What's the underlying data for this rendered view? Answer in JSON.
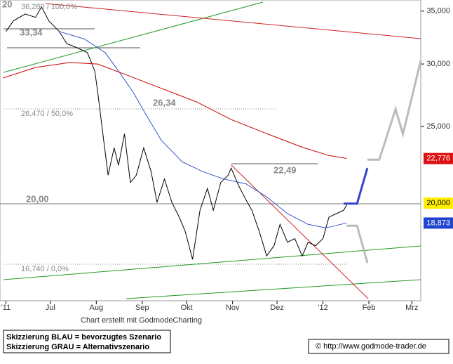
{
  "chart_data": {
    "type": "line",
    "log_scale": true,
    "xlim": [
      -4,
      280
    ],
    "xticks": [
      {
        "value": 0,
        "label": "'11"
      },
      {
        "value": 30,
        "label": "Jul"
      },
      {
        "value": 61,
        "label": "Aug"
      },
      {
        "value": 92,
        "label": "Sep"
      },
      {
        "value": 122,
        "label": "Okt"
      },
      {
        "value": 153,
        "label": "Nov"
      },
      {
        "value": 183,
        "label": "Dez"
      },
      {
        "value": 214,
        "label": "'12"
      },
      {
        "value": 245,
        "label": "Feb"
      },
      {
        "value": 274,
        "label": "Mrz"
      }
    ],
    "ylim": [
      15050,
      36150
    ],
    "yticks": [
      {
        "value": 25000,
        "label": "25,000"
      },
      {
        "value": 30000,
        "label": "30,000"
      },
      {
        "value": 35000,
        "label": "35,000"
      }
    ],
    "series": [
      {
        "color": "#000000",
        "x": [
          0,
          5,
          13,
          20,
          24,
          29,
          36,
          41,
          48,
          55,
          60,
          62,
          66,
          69,
          73,
          76,
          80,
          84,
          88,
          93,
          98,
          102,
          107,
          112,
          117,
          121,
          126,
          131,
          136,
          140,
          145,
          150,
          152,
          157,
          162,
          166,
          171,
          176,
          181,
          185,
          190,
          195,
          200,
          204,
          209,
          214,
          218,
          223,
          228,
          230
        ],
        "values": [
          32980,
          34010,
          34710,
          34370,
          35430,
          34010,
          32980,
          31840,
          31450,
          31010,
          29390,
          27610,
          24000,
          21700,
          23500,
          22330,
          24480,
          21240,
          21700,
          23500,
          21920,
          20040,
          21460,
          20040,
          19200,
          18420,
          16980,
          19590,
          20880,
          19590,
          21240,
          21700,
          22150,
          21060,
          20200,
          19590,
          18420,
          17150,
          17670,
          18800,
          17850,
          18040,
          17150,
          17850,
          17670,
          18040,
          19200,
          19400,
          19590,
          19900
        ]
      },
      {
        "color": "#3355cc",
        "x": [
          36,
          53,
          67,
          76,
          86,
          95,
          105,
          119,
          133,
          147,
          162,
          176,
          190,
          204,
          216,
          230
        ],
        "values": [
          32980,
          32270,
          31010,
          29390,
          27610,
          25790,
          24000,
          22560,
          21920,
          21460,
          21160,
          20370,
          19400,
          18800,
          18610,
          18880
        ]
      },
      {
        "color": "#cc0000",
        "x": [
          -2,
          20,
          43,
          62,
          81,
          105,
          129,
          152,
          176,
          200,
          218,
          230
        ],
        "values": [
          28800,
          29700,
          30130,
          30000,
          29080,
          27940,
          26850,
          25520,
          24490,
          23540,
          22980,
          22780
        ]
      },
      {
        "color": "#3344cc",
        "width": 3,
        "x": [
          228,
          237,
          244
        ],
        "values": [
          19970,
          19970,
          22150
        ]
      },
      {
        "color": "#bbbbbb",
        "width": 3,
        "x": [
          244,
          252,
          263,
          268,
          280
        ],
        "values": [
          22700,
          22700,
          26310,
          24470,
          30290
        ]
      },
      {
        "color": "#bbbbbb",
        "width": 3,
        "x": [
          230,
          237,
          244
        ],
        "values": [
          18730,
          18730,
          16810
        ]
      }
    ],
    "price_labels": [
      {
        "value": 22776,
        "label": "22,776",
        "color": "#dd1111"
      },
      {
        "value": 20000,
        "label": "20,000",
        "color": "#ffee00"
      },
      {
        "value": 18873,
        "label": "18,873",
        "color": "#2244cc"
      }
    ],
    "annotations": [
      "20",
      "36,280 / 100,0%",
      "33,34",
      "26,34",
      "26,470 / 50,0%",
      "22,49",
      "20,00",
      "16,740 / 0,0%"
    ]
  },
  "footer": {
    "credit": "Chart erstellt mit GodmodeCharting",
    "legend": [
      "Skizzierung BLAU = bevorzugtes Szenario",
      "Skizzierung GRAU = Alternativszenario"
    ],
    "copyright": "© http://www.godmode-trader.de"
  }
}
